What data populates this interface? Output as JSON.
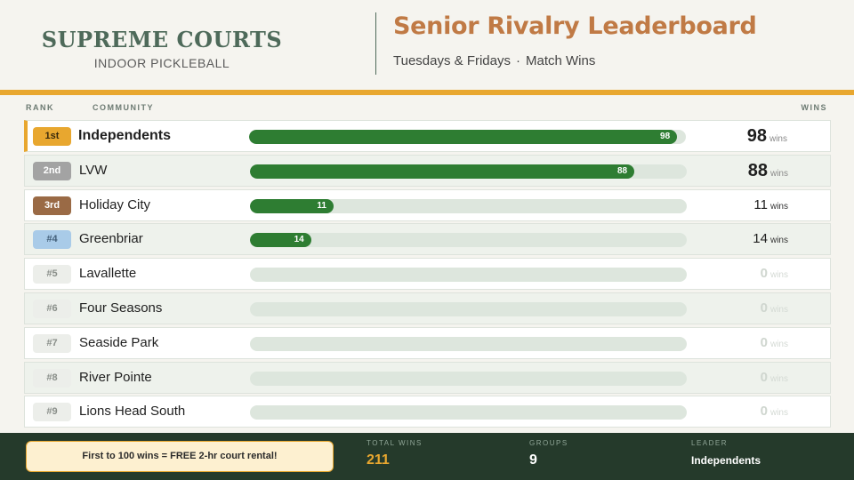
{
  "brand": {
    "title": "SUPREME COURTS",
    "subtitle": "INDOOR PICKLEBALL"
  },
  "board": {
    "title": "Senior Rivalry Leaderboard",
    "schedule": "Tuesdays & Fridays",
    "separator": "·",
    "metric": "Match Wins"
  },
  "columns": {
    "rank": "RANK",
    "community": "COMMUNITY",
    "wins": "WINS"
  },
  "colors": {
    "accent": "#e8a72f",
    "brand_green": "#4e6a5a",
    "bar_fill": "#2e7d32",
    "footer_bg": "#253a2b",
    "title_orange": "#c07a45"
  },
  "scale_max": 100,
  "rows": [
    {
      "rank": "1st",
      "community": "Independents",
      "wins": 98,
      "bar_label": "98",
      "unit": "wins",
      "badge_bg": "#e8a72f",
      "badge_fg": "#3a2a0c"
    },
    {
      "rank": "2nd",
      "community": "LVW",
      "wins": 88,
      "bar_label": "88",
      "unit": "wins",
      "badge_bg": "#a3a3a3",
      "badge_fg": "#ffffff"
    },
    {
      "rank": "3rd",
      "community": "Holiday City",
      "wins": 11,
      "bar_label": "11",
      "unit": "wins",
      "badge_bg": "#9a6a45",
      "badge_fg": "#ffffff"
    },
    {
      "rank": "#4",
      "community": "Greenbriar",
      "wins": 14,
      "bar_label": "14",
      "unit": "wins",
      "badge_bg": "#a9cbe8",
      "badge_fg": "#44607a"
    },
    {
      "rank": "#5",
      "community": "Lavallette",
      "wins": 0,
      "bar_label": "",
      "unit": "wins",
      "badge_bg": "#eceeea",
      "badge_fg": "#8a8f8a"
    },
    {
      "rank": "#6",
      "community": "Four Seasons",
      "wins": 0,
      "bar_label": "",
      "unit": "wins",
      "badge_bg": "#eceeea",
      "badge_fg": "#8a8f8a"
    },
    {
      "rank": "#7",
      "community": "Seaside Park",
      "wins": 0,
      "bar_label": "",
      "unit": "wins",
      "badge_bg": "#eceeea",
      "badge_fg": "#8a8f8a"
    },
    {
      "rank": "#8",
      "community": "River Pointe",
      "wins": 0,
      "bar_label": "",
      "unit": "wins",
      "badge_bg": "#eceeea",
      "badge_fg": "#8a8f8a"
    },
    {
      "rank": "#9",
      "community": "Lions Head South",
      "wins": 0,
      "bar_label": "",
      "unit": "wins",
      "badge_bg": "#eceeea",
      "badge_fg": "#8a8f8a"
    }
  ],
  "footer": {
    "promo": "First to 100 wins = FREE 2-hr court rental!",
    "total_label": "TOTAL WINS",
    "total_value": "211",
    "groups_label": "GROUPS",
    "groups_value": "9",
    "leader_label": "LEADER",
    "leader_value": "Independents"
  }
}
